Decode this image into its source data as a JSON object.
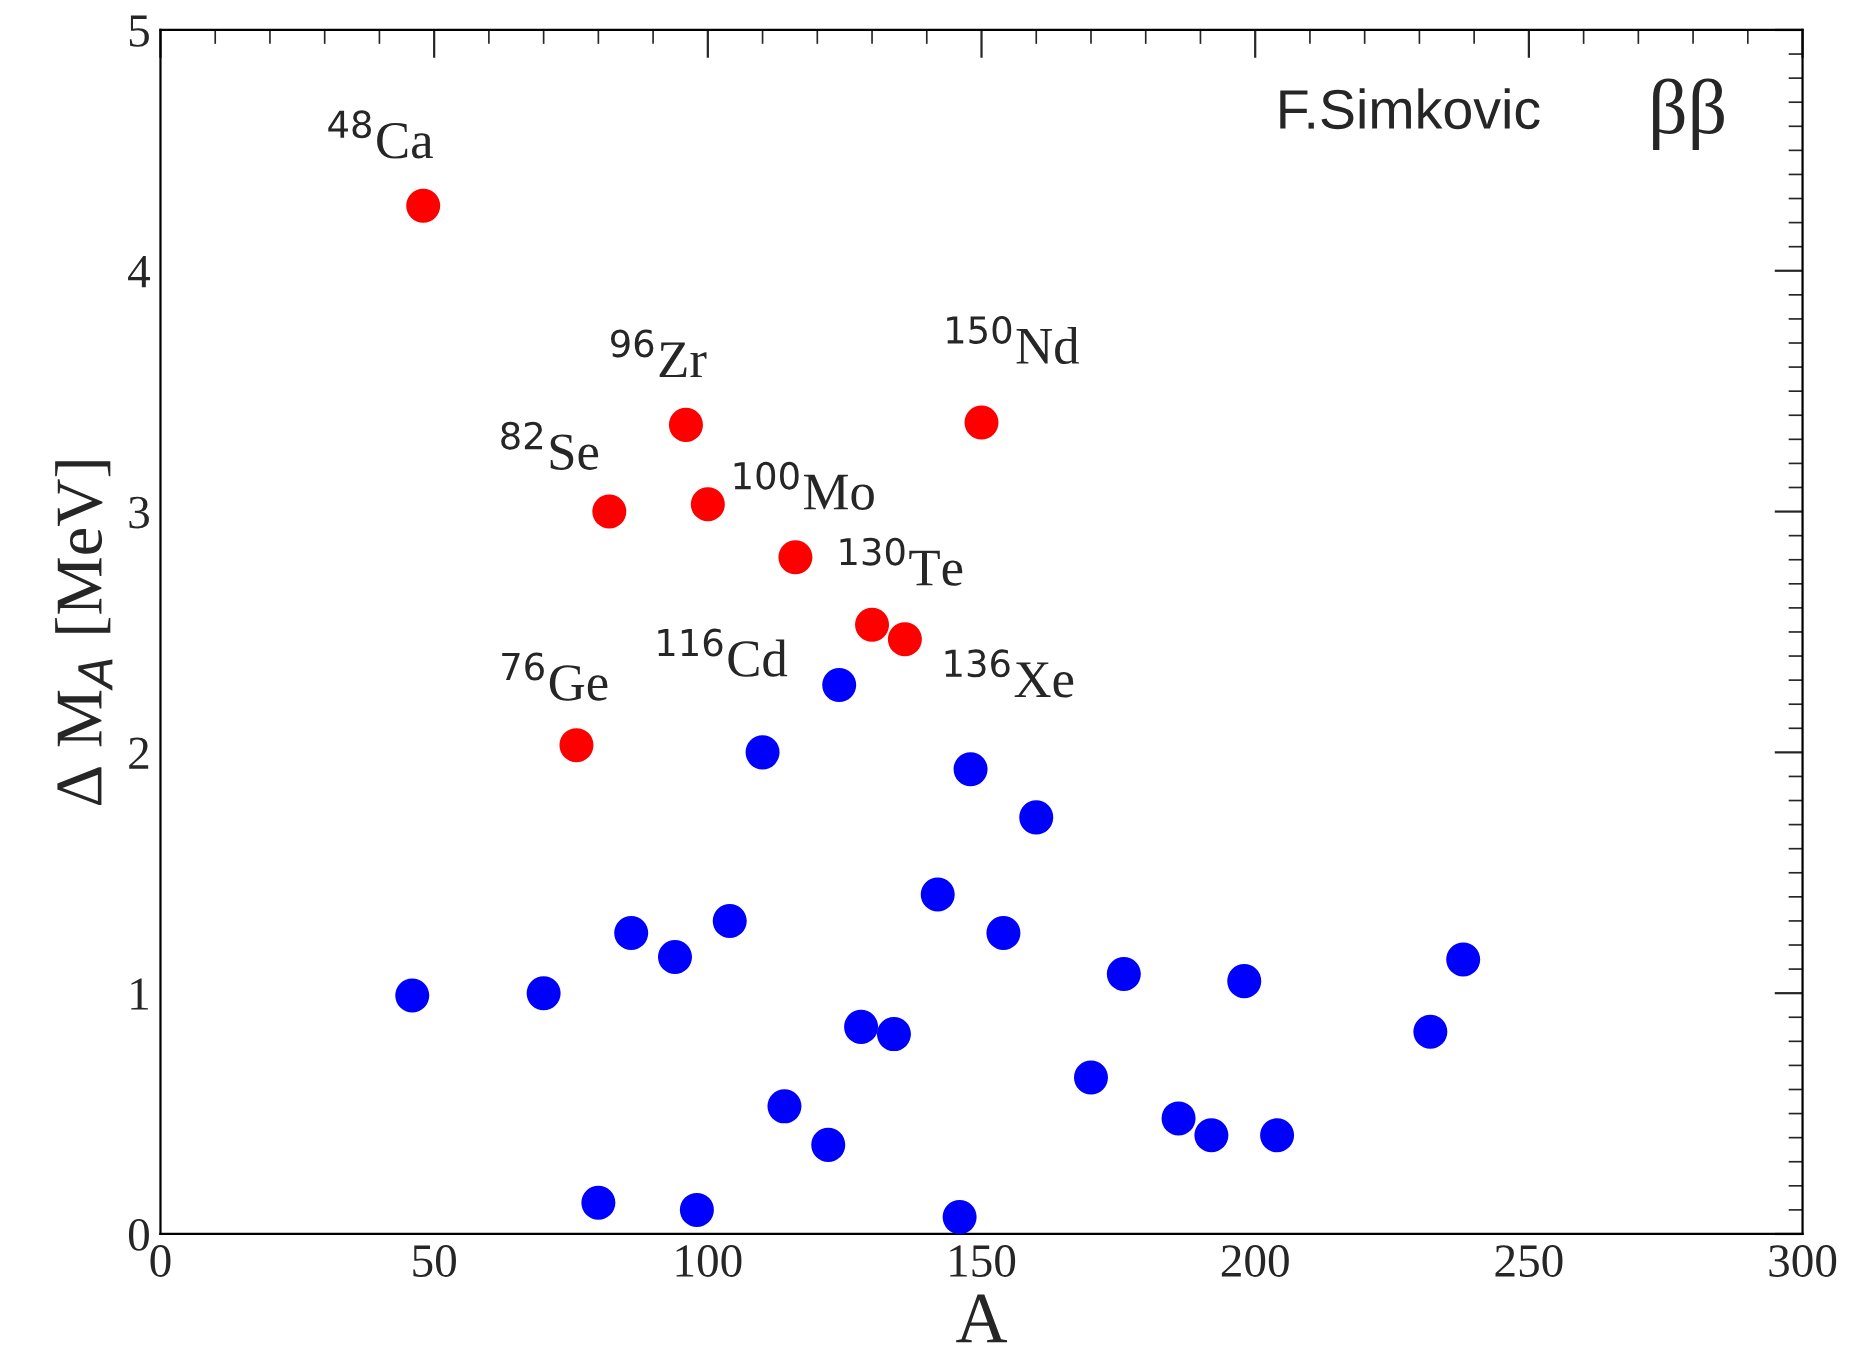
{
  "chart_data": {
    "type": "scatter",
    "xlabel": "A",
    "ylabel": "Δ M$_{A}$ [MeV]",
    "xlim": [
      0,
      300
    ],
    "ylim": [
      0,
      5
    ],
    "xticks": [
      0,
      50,
      100,
      150,
      200,
      250,
      300
    ],
    "yticks": [
      0,
      1,
      2,
      3,
      4,
      5
    ],
    "grid": false,
    "legend": false,
    "marker": "circle",
    "series": [
      {
        "color": "#ff0000",
        "x": [
          48,
          82,
          96,
          100,
          116,
          130,
          136,
          150,
          76
        ],
        "values": [
          4.27,
          3.0,
          3.36,
          3.03,
          2.81,
          2.53,
          2.47,
          3.37,
          2.03
        ]
      },
      {
        "color": "#0000ff",
        "x": [
          46,
          70,
          80,
          86,
          94,
          98,
          104,
          110,
          114,
          122,
          124,
          128,
          134,
          142,
          146,
          148,
          154,
          160,
          170,
          176,
          186,
          192,
          198,
          204,
          232,
          238
        ],
        "values": [
          0.99,
          1.0,
          0.13,
          1.25,
          1.15,
          0.1,
          1.3,
          2.0,
          0.53,
          0.37,
          2.28,
          0.86,
          0.83,
          1.41,
          0.07,
          1.93,
          1.25,
          1.73,
          0.65,
          1.08,
          0.48,
          0.41,
          1.05,
          0.41,
          0.84,
          1.14
        ]
      }
    ],
    "annotations": [
      {
        "text": "$^{48}$Ca",
        "x": 48,
        "y": 4.27
      },
      {
        "text": "$^{82}$Se",
        "x": 82,
        "y": 3.0
      },
      {
        "text": "$^{96}$Zr",
        "x": 96,
        "y": 3.36
      },
      {
        "text": "$^{100}$Mo",
        "x": 100,
        "y": 3.03
      },
      {
        "text": "$^{116}$Cd",
        "x": 116,
        "y": 2.81
      },
      {
        "text": "$^{130}$Te",
        "x": 130,
        "y": 2.53
      },
      {
        "text": "$^{136}$Xe",
        "x": 136,
        "y": 2.47
      },
      {
        "text": "$^{150}$Nd",
        "x": 150,
        "y": 3.37
      },
      {
        "text": "$^{76}$Ge",
        "x": 76,
        "y": 2.03
      },
      "F.Simkovic",
      "ββ"
    ]
  }
}
